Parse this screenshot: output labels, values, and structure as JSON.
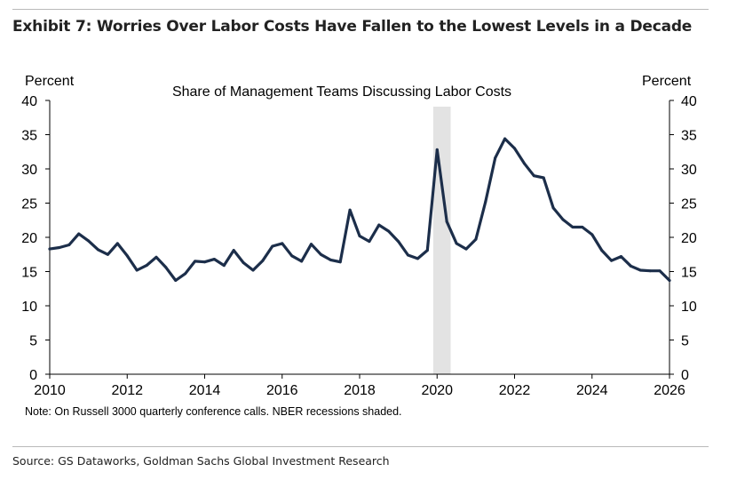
{
  "exhibit": {
    "title": "Exhibit 7: Worries Over Labor Costs Have Fallen to the Lowest Levels in a Decade",
    "source": "Source: GS Dataworks, Goldman Sachs Global Investment Research"
  },
  "chart_data": {
    "type": "line",
    "title": "Share of Management Teams Discussing Labor Costs",
    "ylabel_left": "Percent",
    "ylabel_right": "Percent",
    "note": "Note: On Russell 3000 quarterly conference calls. NBER recessions shaded.",
    "xlim": [
      2010,
      2026
    ],
    "ylim": [
      0,
      40
    ],
    "x_ticks": [
      "2010",
      "2012",
      "2014",
      "2016",
      "2018",
      "2020",
      "2022",
      "2024",
      "2026"
    ],
    "y_ticks": [
      "0",
      "5",
      "10",
      "15",
      "20",
      "25",
      "30",
      "35",
      "40"
    ],
    "recession_shading": [
      [
        2019.9,
        2020.35
      ]
    ],
    "line_color": "#1c2e4a",
    "shade_color": "#e3e3e3",
    "series": [
      {
        "x": [
          2010.0,
          2010.25,
          2010.5,
          2010.75,
          2011.0,
          2011.25,
          2011.5,
          2011.75,
          2012.0,
          2012.25,
          2012.5,
          2012.75,
          2013.0,
          2013.25,
          2013.5,
          2013.75,
          2014.0,
          2014.25,
          2014.5,
          2014.75,
          2015.0,
          2015.25,
          2015.5,
          2015.75,
          2016.0,
          2016.25,
          2016.5,
          2016.75,
          2017.0,
          2017.25,
          2017.5,
          2017.75,
          2018.0,
          2018.25,
          2018.5,
          2018.75,
          2019.0,
          2019.25,
          2019.5,
          2019.75,
          2020.0,
          2020.25,
          2020.5,
          2020.75,
          2021.0,
          2021.25,
          2021.5,
          2021.75,
          2022.0,
          2022.25,
          2022.5,
          2022.75,
          2023.0,
          2023.25,
          2023.5,
          2023.75,
          2024.0,
          2024.25,
          2024.5,
          2024.75,
          2025.0,
          2025.25,
          2025.5,
          2025.75,
          2026.0
        ],
        "values": [
          18.3,
          18.5,
          18.9,
          20.5,
          19.5,
          18.2,
          17.5,
          19.1,
          17.3,
          15.2,
          15.9,
          17.1,
          15.6,
          13.7,
          14.7,
          16.5,
          16.4,
          16.8,
          15.9,
          18.1,
          16.3,
          15.2,
          16.6,
          18.7,
          19.1,
          17.3,
          16.5,
          19.0,
          17.5,
          16.7,
          16.4,
          24.0,
          20.2,
          19.4,
          21.8,
          20.9,
          19.4,
          17.4,
          16.9,
          18.1,
          32.8,
          22.3,
          19.1,
          18.3,
          19.7,
          25.2,
          31.6,
          34.4,
          33.0,
          30.8,
          29.0,
          28.7,
          24.3,
          22.6,
          21.5,
          21.5,
          20.4,
          18.1,
          16.6,
          17.2,
          15.8,
          15.2,
          15.1,
          15.1,
          13.7
        ]
      }
    ]
  }
}
